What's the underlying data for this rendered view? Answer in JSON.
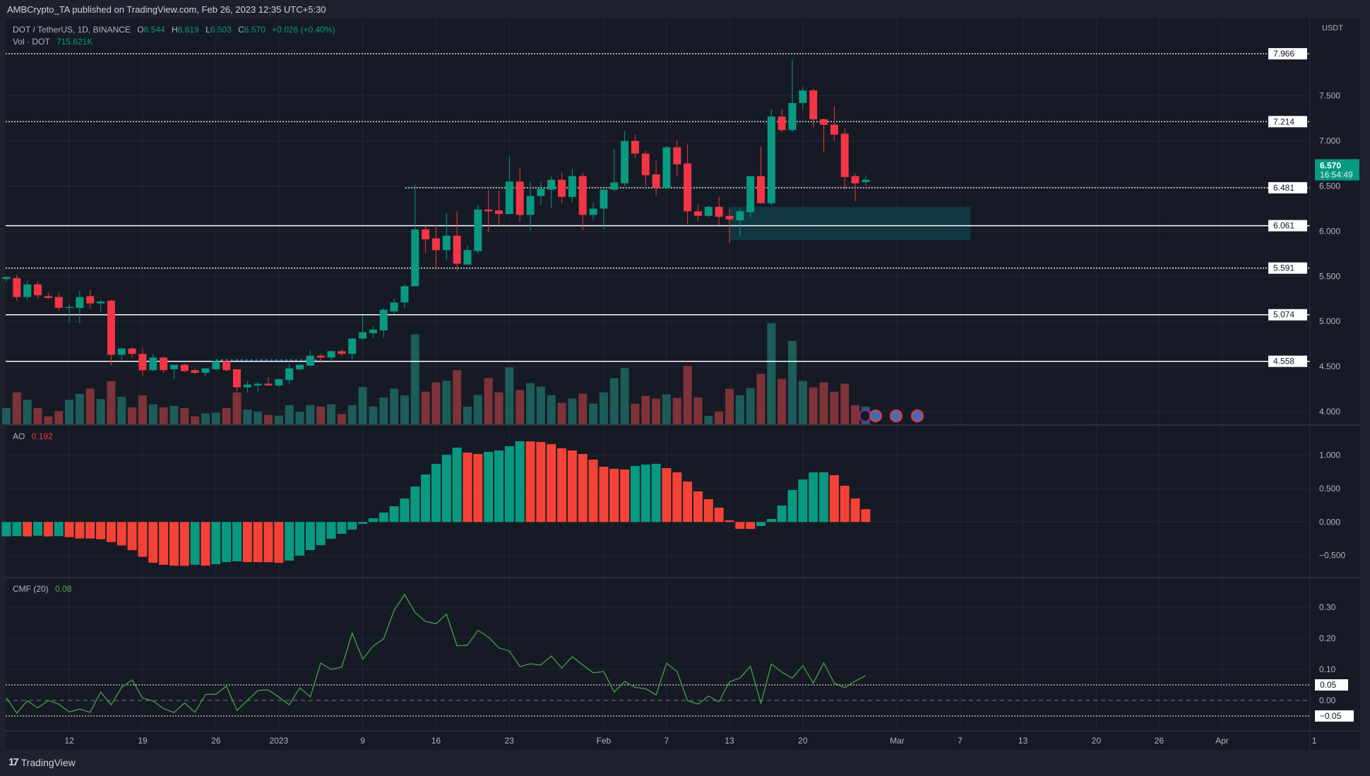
{
  "header": {
    "published": "AMBCrypto_TA published on TradingView.com, Feb 26, 2023 12:35 UTC+5:30"
  },
  "legend": {
    "symbol": "DOT / TetherUS, 1D, BINANCE",
    "open_label": "O",
    "open": "6.544",
    "high_label": "H",
    "high": "6.619",
    "low_label": "L",
    "low": "6.503",
    "close_label": "C",
    "close": "6.570",
    "change": "+0.026 (+0.40%)",
    "volume_label": "Vol · DOT",
    "volume": "715.621K"
  },
  "ao": {
    "label": "AO",
    "value": "0.192"
  },
  "cmf": {
    "label": "CMF (20)",
    "value": "0.08"
  },
  "currency": "USDT",
  "current_price": {
    "price": "6.570",
    "countdown": "16:54:49"
  },
  "footer": {
    "brand": "TradingView",
    "logo_text": "17"
  },
  "colors": {
    "up": "#089981",
    "down": "#f23645",
    "vol_up": "#1d5c59",
    "vol_down": "#7e3338",
    "ao_up": "#089981",
    "ao_down": "#f44336",
    "cmf_line": "#43a047",
    "zone": "#0f3a46",
    "background": "#161a25",
    "grid": "#232733"
  },
  "icons": [
    "lightning-event-icon",
    "us-flag-event-icon",
    "us-flag-event-icon",
    "us-flag-event-icon"
  ],
  "chart_data": [
    {
      "type": "candlestick",
      "title": "DOT / TetherUS, 1D, BINANCE",
      "yunit": "USDT",
      "ylim": [
        3.75,
        8.2
      ],
      "yticks": [
        "7.500",
        "7.000",
        "6.500",
        "6.000",
        "5.500",
        "5.000",
        "4.500",
        "4.000"
      ],
      "xticks": [
        "12",
        "19",
        "26",
        "2023",
        "9",
        "16",
        "23",
        "Feb",
        "7",
        "13",
        "20",
        "Mar",
        "7",
        "13",
        "20",
        "26",
        "Apr",
        "1"
      ],
      "levels": [
        {
          "value": "7.966",
          "style": "dotted"
        },
        {
          "value": "7.214",
          "style": "dotted"
        },
        {
          "value": "6.481",
          "style": "dotted"
        },
        {
          "value": "6.061",
          "style": "solid"
        },
        {
          "value": "5.591",
          "style": "dotted"
        },
        {
          "value": "5.074",
          "style": "solid"
        },
        {
          "value": "4.558",
          "style": "solid"
        }
      ],
      "zone": {
        "from": "2023-02-13",
        "to": "2023-03-08",
        "top": 6.27,
        "bottom": 5.9
      },
      "columns": [
        "date",
        "open",
        "high",
        "low",
        "close",
        "volume_k"
      ],
      "candles": [
        [
          "2022-12-06",
          5.47,
          5.5,
          5.44,
          5.49,
          650
        ],
        [
          "2022-12-07",
          5.48,
          5.52,
          5.23,
          5.27,
          1280
        ],
        [
          "2022-12-08",
          5.27,
          5.45,
          5.24,
          5.41,
          980
        ],
        [
          "2022-12-09",
          5.41,
          5.44,
          5.25,
          5.29,
          650
        ],
        [
          "2022-12-10",
          5.28,
          5.32,
          5.25,
          5.26,
          320
        ],
        [
          "2022-12-11",
          5.27,
          5.32,
          5.12,
          5.15,
          530
        ],
        [
          "2022-12-12",
          5.15,
          5.19,
          4.99,
          5.16,
          980
        ],
        [
          "2022-12-13",
          5.15,
          5.34,
          4.98,
          5.27,
          1220
        ],
        [
          "2022-12-14",
          5.28,
          5.35,
          5.14,
          5.2,
          1430
        ],
        [
          "2022-12-15",
          5.2,
          5.24,
          5.11,
          5.22,
          1010
        ],
        [
          "2022-12-16",
          5.23,
          5.24,
          4.51,
          4.63,
          1730
        ],
        [
          "2022-12-17",
          4.63,
          4.71,
          4.57,
          4.7,
          1100
        ],
        [
          "2022-12-18",
          4.7,
          4.71,
          4.6,
          4.64,
          680
        ],
        [
          "2022-12-19",
          4.64,
          4.7,
          4.4,
          4.46,
          1160
        ],
        [
          "2022-12-20",
          4.46,
          4.64,
          4.45,
          4.6,
          800
        ],
        [
          "2022-12-21",
          4.6,
          4.61,
          4.43,
          4.46,
          680
        ],
        [
          "2022-12-22",
          4.47,
          4.52,
          4.36,
          4.52,
          740
        ],
        [
          "2022-12-23",
          4.52,
          4.53,
          4.44,
          4.45,
          650
        ],
        [
          "2022-12-24",
          4.46,
          4.48,
          4.42,
          4.43,
          320
        ],
        [
          "2022-12-25",
          4.43,
          4.48,
          4.39,
          4.48,
          440
        ],
        [
          "2022-12-26",
          4.47,
          4.56,
          4.46,
          4.56,
          470
        ],
        [
          "2022-12-27",
          4.56,
          4.57,
          4.45,
          4.46,
          650
        ],
        [
          "2022-12-28",
          4.47,
          4.47,
          4.23,
          4.27,
          1280
        ],
        [
          "2022-12-29",
          4.27,
          4.34,
          4.21,
          4.3,
          590
        ],
        [
          "2022-12-30",
          4.29,
          4.33,
          4.21,
          4.31,
          500
        ],
        [
          "2022-12-31",
          4.31,
          4.38,
          4.29,
          4.29,
          380
        ],
        [
          "2023-01-01",
          4.29,
          4.37,
          4.27,
          4.36,
          350
        ],
        [
          "2023-01-02",
          4.35,
          4.53,
          4.31,
          4.48,
          770
        ],
        [
          "2023-01-03",
          4.47,
          4.52,
          4.45,
          4.52,
          500
        ],
        [
          "2023-01-04",
          4.51,
          4.68,
          4.5,
          4.62,
          770
        ],
        [
          "2023-01-05",
          4.62,
          4.64,
          4.54,
          4.6,
          710
        ],
        [
          "2023-01-06",
          4.6,
          4.68,
          4.54,
          4.67,
          800
        ],
        [
          "2023-01-07",
          4.67,
          4.69,
          4.62,
          4.64,
          410
        ],
        [
          "2023-01-08",
          4.64,
          4.82,
          4.58,
          4.81,
          770
        ],
        [
          "2023-01-09",
          4.81,
          5.07,
          4.79,
          4.88,
          1490
        ],
        [
          "2023-01-10",
          4.87,
          4.95,
          4.82,
          4.91,
          710
        ],
        [
          "2023-01-11",
          4.9,
          5.15,
          4.82,
          5.13,
          1070
        ],
        [
          "2023-01-12",
          5.11,
          5.25,
          5.08,
          5.21,
          1430
        ],
        [
          "2023-01-13",
          5.21,
          5.41,
          5.15,
          5.39,
          1160
        ],
        [
          "2023-01-14",
          5.39,
          6.51,
          5.39,
          6.02,
          3600
        ],
        [
          "2023-01-15",
          6.02,
          6.06,
          5.76,
          5.91,
          1310
        ],
        [
          "2023-01-16",
          5.92,
          6.07,
          5.6,
          5.79,
          1680
        ],
        [
          "2023-01-17",
          5.79,
          6.2,
          5.68,
          5.95,
          1740
        ],
        [
          "2023-01-18",
          5.95,
          6.22,
          5.56,
          5.64,
          2170
        ],
        [
          "2023-01-19",
          5.63,
          5.84,
          5.63,
          5.79,
          710
        ],
        [
          "2023-01-20",
          5.78,
          6.29,
          5.75,
          6.24,
          1170
        ],
        [
          "2023-01-21",
          6.24,
          6.46,
          5.99,
          6.22,
          1850
        ],
        [
          "2023-01-22",
          6.23,
          6.45,
          6.07,
          6.19,
          1280
        ],
        [
          "2023-01-23",
          6.19,
          6.83,
          6.19,
          6.55,
          2280
        ],
        [
          "2023-01-24",
          6.55,
          6.7,
          6.1,
          6.18,
          1370
        ],
        [
          "2023-01-25",
          6.18,
          6.55,
          6.0,
          6.39,
          1650
        ],
        [
          "2023-01-26",
          6.39,
          6.55,
          6.29,
          6.47,
          1510
        ],
        [
          "2023-01-27",
          6.46,
          6.61,
          6.26,
          6.57,
          1170
        ],
        [
          "2023-01-28",
          6.57,
          6.65,
          6.31,
          6.38,
          860
        ],
        [
          "2023-01-29",
          6.38,
          6.69,
          6.32,
          6.61,
          1030
        ],
        [
          "2023-01-30",
          6.61,
          6.65,
          6.01,
          6.18,
          1230
        ],
        [
          "2023-01-31",
          6.18,
          6.32,
          6.13,
          6.25,
          830
        ],
        [
          "2023-02-01",
          6.25,
          6.48,
          6.02,
          6.46,
          1280
        ],
        [
          "2023-02-02",
          6.46,
          6.91,
          6.44,
          6.54,
          1850
        ],
        [
          "2023-02-03",
          6.53,
          7.11,
          6.5,
          7.0,
          2250
        ],
        [
          "2023-02-04",
          7.0,
          7.07,
          6.81,
          6.86,
          830
        ],
        [
          "2023-02-05",
          6.86,
          6.89,
          6.5,
          6.62,
          1140
        ],
        [
          "2023-02-06",
          6.63,
          6.78,
          6.39,
          6.48,
          1030
        ],
        [
          "2023-02-07",
          6.48,
          6.94,
          6.47,
          6.93,
          1200
        ],
        [
          "2023-02-08",
          6.93,
          7.01,
          6.61,
          6.74,
          1060
        ],
        [
          "2023-02-09",
          6.75,
          6.97,
          6.08,
          6.22,
          2340
        ],
        [
          "2023-02-10",
          6.22,
          6.3,
          6.11,
          6.17,
          1080
        ],
        [
          "2023-02-11",
          6.17,
          6.29,
          6.15,
          6.27,
          340
        ],
        [
          "2023-02-12",
          6.27,
          6.38,
          6.07,
          6.16,
          510
        ],
        [
          "2023-02-13",
          6.17,
          6.25,
          5.87,
          6.13,
          1420
        ],
        [
          "2023-02-14",
          6.12,
          6.25,
          5.94,
          6.22,
          1170
        ],
        [
          "2023-02-15",
          6.21,
          6.61,
          6.15,
          6.61,
          1450
        ],
        [
          "2023-02-16",
          6.61,
          6.94,
          6.31,
          6.31,
          2020
        ],
        [
          "2023-02-17",
          6.31,
          7.35,
          6.29,
          7.27,
          4050
        ],
        [
          "2023-02-18",
          7.27,
          7.35,
          7.1,
          7.12,
          1820
        ],
        [
          "2023-02-19",
          7.12,
          7.9,
          7.1,
          7.42,
          3340
        ],
        [
          "2023-02-20",
          7.42,
          7.6,
          7.35,
          7.56,
          1740
        ],
        [
          "2023-02-21",
          7.56,
          7.58,
          7.15,
          7.24,
          1480
        ],
        [
          "2023-02-22",
          7.24,
          7.25,
          6.87,
          7.18,
          1680
        ],
        [
          "2023-02-23",
          7.18,
          7.38,
          7.0,
          7.07,
          1310
        ],
        [
          "2023-02-24",
          7.08,
          7.14,
          6.46,
          6.6,
          1630
        ],
        [
          "2023-02-25",
          6.61,
          6.64,
          6.33,
          6.53,
          770
        ],
        [
          "2023-02-26",
          6.544,
          6.619,
          6.503,
          6.57,
          715.621
        ]
      ]
    },
    {
      "type": "bar",
      "title": "AO",
      "ylim": [
        -0.75,
        1.3
      ],
      "yticks": [
        "1.000",
        "0.500",
        "0.000",
        "−0.500"
      ],
      "values": [
        -0.215,
        -0.21,
        -0.215,
        -0.205,
        -0.215,
        -0.21,
        -0.226,
        -0.246,
        -0.247,
        -0.257,
        -0.3,
        -0.35,
        -0.42,
        -0.52,
        -0.61,
        -0.64,
        -0.653,
        -0.655,
        -0.64,
        -0.652,
        -0.63,
        -0.599,
        -0.588,
        -0.599,
        -0.6,
        -0.601,
        -0.609,
        -0.577,
        -0.503,
        -0.419,
        -0.345,
        -0.25,
        -0.176,
        -0.113,
        -0.028,
        0.056,
        0.141,
        0.236,
        0.352,
        0.532,
        0.711,
        0.87,
        1.007,
        1.113,
        1.039,
        1.018,
        1.049,
        1.07,
        1.134,
        1.208,
        1.205,
        1.197,
        1.165,
        1.102,
        1.07,
        1.018,
        0.933,
        0.827,
        0.796,
        0.785,
        0.838,
        0.859,
        0.87,
        0.806,
        0.743,
        0.606,
        0.458,
        0.342,
        0.215,
        0.025,
        -0.102,
        -0.103,
        -0.06,
        0.046,
        0.246,
        0.479,
        0.637,
        0.743,
        0.744,
        0.701,
        0.542,
        0.352,
        0.192
      ]
    },
    {
      "type": "line",
      "title": "CMF (20)",
      "ylim": [
        -0.09,
        0.36
      ],
      "yticks": [
        "0.30",
        "0.20",
        "0.10",
        "0.00"
      ],
      "levels": [
        {
          "value": "0.05",
          "style": "dotted"
        },
        {
          "value": "-0.05",
          "label": "−0.05",
          "style": "dotted"
        }
      ],
      "values": [
        0.009,
        -0.041,
        -0.001,
        -0.024,
        0.0,
        -0.012,
        -0.037,
        -0.028,
        -0.038,
        0.027,
        -0.014,
        0.042,
        0.066,
        0.008,
        -0.002,
        -0.026,
        -0.039,
        -0.008,
        -0.038,
        0.019,
        0.02,
        0.046,
        -0.032,
        0.0,
        0.032,
        0.034,
        0.011,
        -0.014,
        0.041,
        0.012,
        0.12,
        0.1,
        0.107,
        0.217,
        0.133,
        0.175,
        0.198,
        0.29,
        0.341,
        0.283,
        0.254,
        0.247,
        0.278,
        0.176,
        0.178,
        0.226,
        0.204,
        0.169,
        0.159,
        0.109,
        0.118,
        0.114,
        0.143,
        0.104,
        0.141,
        0.114,
        0.089,
        0.093,
        0.027,
        0.061,
        0.042,
        0.038,
        0.018,
        0.12,
        0.093,
        -0.001,
        -0.012,
        0.014,
        -0.004,
        0.06,
        0.072,
        0.11,
        -0.009,
        0.117,
        0.091,
        0.072,
        0.112,
        0.056,
        0.121,
        0.056,
        0.041,
        0.062,
        0.08
      ]
    }
  ]
}
